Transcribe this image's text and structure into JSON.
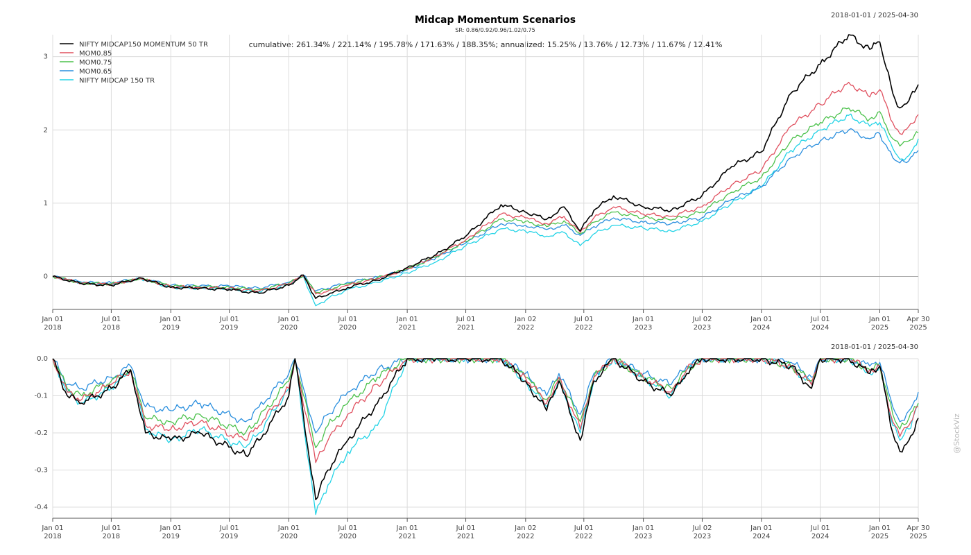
{
  "title": "Midcap Momentum Scenarios",
  "subtitle": "SR: 0.86/0.92/0.96/1.02/0.75",
  "watermark": "@StockViz",
  "colors": {
    "momentum50": "#000000",
    "mom085": "#e0505f",
    "mom075": "#4cc24c",
    "mom065": "#2a8fde",
    "midcap150": "#22d3e6",
    "grid": "#dcdcdc",
    "zero_line": "#aaaaaa"
  },
  "chart_data": [
    {
      "type": "line",
      "panel": "cumulative",
      "date_range_label": "2018-01-01 / 2025-04-30",
      "annotation": "cumulative: 261.34% / 221.14% / 195.78% / 171.63% / 188.35%; annualized: 15.25% / 13.76% / 12.73% / 11.67% / 12.41%",
      "legend_position": "top-left",
      "grid": true,
      "ylim": [
        -0.45,
        3.3
      ],
      "yticks": [
        "0",
        "1",
        "2",
        "3"
      ],
      "x_tick_labels": [
        [
          "Jan 01",
          "2018"
        ],
        [
          "Jul 01",
          "2018"
        ],
        [
          "Jan 01",
          "2019"
        ],
        [
          "Jul 01",
          "2019"
        ],
        [
          "Jan 01",
          "2020"
        ],
        [
          "Jul 01",
          "2020"
        ],
        [
          "Jan 01",
          "2021"
        ],
        [
          "Jul 01",
          "2021"
        ],
        [
          "Jan 02",
          "2022"
        ],
        [
          "Jul 01",
          "2022"
        ],
        [
          "Jan 01",
          "2023"
        ],
        [
          "Jul 02",
          "2023"
        ],
        [
          "Jan 01",
          "2024"
        ],
        [
          "Jul 01",
          "2024"
        ],
        [
          "Jan 01",
          "2025"
        ],
        [
          "Apr 30",
          "2025"
        ]
      ],
      "x": [
        "2018-01-01",
        "2018-04-01",
        "2018-07-01",
        "2018-10-01",
        "2019-01-01",
        "2019-04-01",
        "2019-07-01",
        "2019-10-01",
        "2020-01-01",
        "2020-02-15",
        "2020-03-24",
        "2020-05-01",
        "2020-07-01",
        "2020-10-01",
        "2021-01-01",
        "2021-04-01",
        "2021-07-01",
        "2021-10-18",
        "2022-01-01",
        "2022-03-08",
        "2022-05-01",
        "2022-06-20",
        "2022-08-01",
        "2022-10-01",
        "2023-01-01",
        "2023-03-28",
        "2023-07-01",
        "2023-10-01",
        "2024-01-01",
        "2024-04-01",
        "2024-07-01",
        "2024-09-27",
        "2024-12-01",
        "2025-01-01",
        "2025-02-10",
        "2025-03-04",
        "2025-04-01",
        "2025-04-30"
      ],
      "series": [
        {
          "name": "NIFTY MIDCAP150 MOMENTUM 50 TR",
          "color_key": "momentum50",
          "values": [
            0,
            -0.1,
            -0.12,
            -0.02,
            -0.15,
            -0.16,
            -0.18,
            -0.23,
            -0.12,
            0.02,
            -0.3,
            -0.25,
            -0.15,
            -0.05,
            0.12,
            0.3,
            0.55,
            0.98,
            0.88,
            0.78,
            0.95,
            0.62,
            0.9,
            1.1,
            0.95,
            0.9,
            1.1,
            1.5,
            1.7,
            2.5,
            2.9,
            3.3,
            3.1,
            3.2,
            2.5,
            2.3,
            2.4,
            2.62
          ]
        },
        {
          "name": "MOM0.85",
          "color_key": "mom085",
          "values": [
            0,
            -0.09,
            -0.11,
            -0.03,
            -0.14,
            -0.15,
            -0.16,
            -0.2,
            -0.1,
            0.01,
            -0.24,
            -0.2,
            -0.12,
            -0.03,
            0.1,
            0.28,
            0.5,
            0.85,
            0.8,
            0.72,
            0.82,
            0.6,
            0.8,
            0.95,
            0.85,
            0.82,
            0.95,
            1.25,
            1.45,
            2.05,
            2.35,
            2.65,
            2.45,
            2.55,
            2.1,
            1.95,
            2.05,
            2.21
          ]
        },
        {
          "name": "MOM0.75",
          "color_key": "mom075",
          "values": [
            0,
            -0.09,
            -0.1,
            -0.03,
            -0.13,
            -0.14,
            -0.15,
            -0.18,
            -0.09,
            0.01,
            -0.22,
            -0.18,
            -0.1,
            -0.02,
            0.1,
            0.27,
            0.48,
            0.78,
            0.75,
            0.68,
            0.76,
            0.58,
            0.74,
            0.88,
            0.8,
            0.77,
            0.88,
            1.15,
            1.35,
            1.85,
            2.1,
            2.3,
            2.15,
            2.25,
            1.88,
            1.78,
            1.85,
            1.96
          ]
        },
        {
          "name": "MOM0.65",
          "color_key": "mom065",
          "values": [
            0,
            -0.08,
            -0.09,
            -0.02,
            -0.12,
            -0.13,
            -0.13,
            -0.16,
            -0.08,
            0.02,
            -0.2,
            -0.16,
            -0.08,
            -0.01,
            0.09,
            0.26,
            0.46,
            0.72,
            0.7,
            0.64,
            0.7,
            0.56,
            0.68,
            0.8,
            0.74,
            0.72,
            0.8,
            1.05,
            1.22,
            1.62,
            1.85,
            2.0,
            1.88,
            1.95,
            1.62,
            1.55,
            1.58,
            1.72
          ]
        },
        {
          "name": "NIFTY MIDCAP 150 TR",
          "color_key": "midcap150",
          "values": [
            0,
            -0.09,
            -0.11,
            -0.03,
            -0.15,
            -0.16,
            -0.17,
            -0.21,
            -0.11,
            0.0,
            -0.4,
            -0.3,
            -0.18,
            -0.08,
            0.05,
            0.2,
            0.42,
            0.65,
            0.62,
            0.55,
            0.6,
            0.42,
            0.58,
            0.7,
            0.66,
            0.62,
            0.75,
            1.0,
            1.22,
            1.72,
            2.0,
            2.2,
            2.05,
            2.1,
            1.75,
            1.6,
            1.65,
            1.88
          ]
        }
      ]
    },
    {
      "type": "line",
      "panel": "drawdown",
      "date_range_label": "2018-01-01 / 2025-04-30",
      "grid": true,
      "ylim": [
        -0.43,
        0.0
      ],
      "yticks": [
        "0.0",
        "-0.1",
        "-0.2",
        "-0.3",
        "-0.4"
      ],
      "x_tick_labels": [
        [
          "Jan 01",
          "2018"
        ],
        [
          "Jul 01",
          "2018"
        ],
        [
          "Jan 01",
          "2019"
        ],
        [
          "Jul 01",
          "2019"
        ],
        [
          "Jan 01",
          "2020"
        ],
        [
          "Jul 01",
          "2020"
        ],
        [
          "Jan 01",
          "2021"
        ],
        [
          "Jul 01",
          "2021"
        ],
        [
          "Jan 02",
          "2022"
        ],
        [
          "Jul 01",
          "2022"
        ],
        [
          "Jan 01",
          "2023"
        ],
        [
          "Jul 02",
          "2023"
        ],
        [
          "Jan 01",
          "2024"
        ],
        [
          "Jul 01",
          "2024"
        ],
        [
          "Jan 01",
          "2025"
        ],
        [
          "Apr 30",
          "2025"
        ]
      ],
      "x": [
        "2018-01-01",
        "2018-02-15",
        "2018-04-01",
        "2018-07-01",
        "2018-08-30",
        "2018-10-15",
        "2019-01-01",
        "2019-04-01",
        "2019-08-20",
        "2019-10-01",
        "2020-01-01",
        "2020-01-20",
        "2020-03-24",
        "2020-05-01",
        "2020-07-01",
        "2020-10-01",
        "2021-01-01",
        "2021-04-01",
        "2021-07-01",
        "2021-10-18",
        "2022-01-01",
        "2022-03-08",
        "2022-04-15",
        "2022-06-20",
        "2022-08-01",
        "2022-10-01",
        "2023-01-01",
        "2023-03-28",
        "2023-05-15",
        "2023-07-01",
        "2023-10-01",
        "2024-01-01",
        "2024-04-01",
        "2024-06-04",
        "2024-07-01",
        "2024-09-27",
        "2024-12-01",
        "2025-01-01",
        "2025-02-10",
        "2025-03-04",
        "2025-04-01",
        "2025-04-30"
      ],
      "series": [
        {
          "name": "NIFTY MIDCAP150 MOMENTUM 50 TR",
          "color_key": "momentum50",
          "values": [
            0,
            -0.1,
            -0.12,
            -0.08,
            -0.03,
            -0.2,
            -0.22,
            -0.2,
            -0.26,
            -0.22,
            -0.1,
            0.0,
            -0.38,
            -0.3,
            -0.22,
            -0.12,
            0.0,
            0.0,
            0.0,
            0.0,
            -0.06,
            -0.14,
            -0.06,
            -0.22,
            -0.06,
            0.0,
            -0.06,
            -0.1,
            -0.04,
            0.0,
            0.0,
            0.0,
            -0.02,
            -0.08,
            0.0,
            0.0,
            -0.04,
            -0.02,
            -0.2,
            -0.25,
            -0.22,
            -0.16
          ]
        },
        {
          "name": "MOM0.85",
          "color_key": "mom085",
          "values": [
            0,
            -0.09,
            -0.11,
            -0.07,
            -0.03,
            -0.18,
            -0.19,
            -0.17,
            -0.22,
            -0.18,
            -0.08,
            0.0,
            -0.28,
            -0.22,
            -0.15,
            -0.07,
            0.0,
            0.0,
            0.0,
            0.0,
            -0.05,
            -0.12,
            -0.05,
            -0.19,
            -0.05,
            0.0,
            -0.05,
            -0.09,
            -0.03,
            0.0,
            0.0,
            0.0,
            -0.02,
            -0.07,
            0.0,
            0.0,
            -0.03,
            -0.02,
            -0.17,
            -0.21,
            -0.18,
            -0.13
          ]
        },
        {
          "name": "MOM0.75",
          "color_key": "mom075",
          "values": [
            0,
            -0.08,
            -0.1,
            -0.06,
            -0.03,
            -0.16,
            -0.17,
            -0.15,
            -0.2,
            -0.16,
            -0.06,
            0.0,
            -0.24,
            -0.18,
            -0.12,
            -0.05,
            0.0,
            0.0,
            0.0,
            0.0,
            -0.05,
            -0.11,
            -0.05,
            -0.17,
            -0.05,
            0.0,
            -0.05,
            -0.08,
            -0.03,
            0.0,
            0.0,
            0.0,
            -0.02,
            -0.06,
            0.0,
            0.0,
            -0.03,
            -0.02,
            -0.15,
            -0.19,
            -0.16,
            -0.12
          ]
        },
        {
          "name": "MOM0.65",
          "color_key": "mom065",
          "values": [
            0,
            -0.07,
            -0.08,
            -0.05,
            -0.02,
            -0.13,
            -0.14,
            -0.12,
            -0.17,
            -0.13,
            -0.04,
            0.0,
            -0.2,
            -0.15,
            -0.09,
            -0.03,
            0.0,
            0.0,
            0.0,
            0.0,
            -0.04,
            -0.1,
            -0.04,
            -0.15,
            -0.04,
            0.0,
            -0.04,
            -0.07,
            -0.02,
            0.0,
            0.0,
            0.0,
            -0.01,
            -0.05,
            0.0,
            0.0,
            -0.02,
            -0.01,
            -0.13,
            -0.17,
            -0.14,
            -0.09
          ]
        },
        {
          "name": "NIFTY MIDCAP 150 TR",
          "color_key": "midcap150",
          "values": [
            0,
            -0.09,
            -0.12,
            -0.08,
            -0.03,
            -0.19,
            -0.22,
            -0.19,
            -0.24,
            -0.2,
            -0.08,
            0.0,
            -0.42,
            -0.34,
            -0.25,
            -0.18,
            0.0,
            0.0,
            0.0,
            0.0,
            -0.06,
            -0.13,
            -0.06,
            -0.2,
            -0.06,
            0.0,
            -0.05,
            -0.1,
            -0.03,
            0.0,
            0.0,
            0.0,
            -0.02,
            -0.07,
            0.0,
            0.0,
            -0.04,
            -0.02,
            -0.18,
            -0.22,
            -0.19,
            -0.12
          ]
        }
      ]
    }
  ]
}
